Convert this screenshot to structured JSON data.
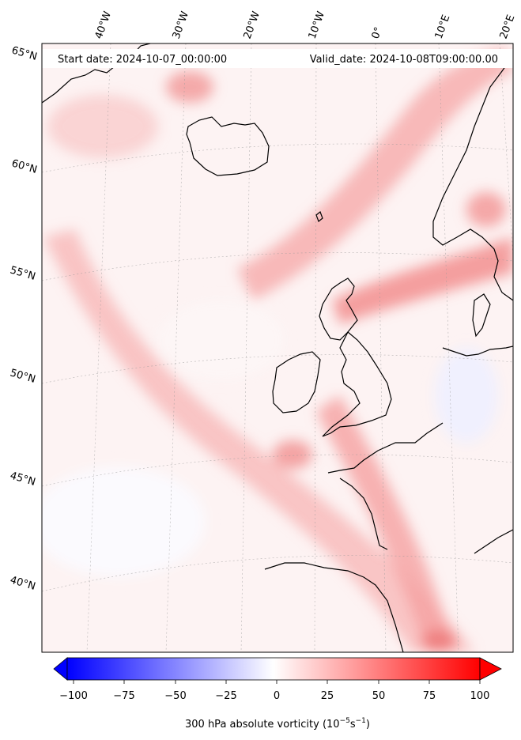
{
  "header": {
    "start_date": "Start date: 2024-10-07_00:00:00",
    "valid_date": "Valid_date: 2024-10-08T09:00:00.00"
  },
  "lon_labels": [
    "40°W",
    "30°W",
    "20°W",
    "10°W",
    "0°",
    "10°E",
    "20°E"
  ],
  "lat_labels": [
    "65°N",
    "60°N",
    "55°N",
    "50°N",
    "45°N",
    "40°N"
  ],
  "colorbar": {
    "ticks": [
      "−100",
      "−75",
      "−50",
      "−25",
      "0",
      "25",
      "50",
      "75",
      "100"
    ],
    "label_main": "300 hPa absolute vorticity (10",
    "label_exp1": "−5",
    "label_mid": "s",
    "label_exp2": "−1",
    "label_end": ")",
    "range": [
      -100,
      100
    ],
    "colors": {
      "min": "#0000ff",
      "mid": "#ffffff",
      "max": "#ff0000"
    },
    "extend": "both"
  },
  "map": {
    "field": "300 hPa absolute vorticity",
    "colormap": "bwr",
    "coastline_color": "#000000",
    "graticule": "dotted grey"
  }
}
